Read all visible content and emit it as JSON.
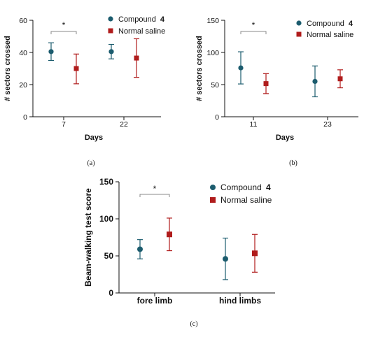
{
  "colors": {
    "compound": "#1c5c6e",
    "saline": "#b01c1c",
    "axis": "#111111",
    "bracket": "#888888"
  },
  "chart_data": [
    {
      "id": "a",
      "type": "scatter",
      "caption": "(a)",
      "xlabel": "Days",
      "ylabel": "# sectors crossed",
      "ylim": [
        0,
        60
      ],
      "yticks": [
        "0",
        "20",
        "40",
        "60"
      ],
      "categories": [
        "7",
        "22"
      ],
      "legend": {
        "placement": "top-right",
        "compound_prefix": "Compound ",
        "compound_bold": "4",
        "saline_label": "Normal saline"
      },
      "significance": "*",
      "series": [
        {
          "name": "Compound 4",
          "marker": "circle",
          "values": [
            40.5,
            40.5
          ],
          "lower": [
            35,
            36
          ],
          "upper": [
            46,
            45
          ]
        },
        {
          "name": "Normal saline",
          "marker": "square",
          "values": [
            30,
            36.5
          ],
          "lower": [
            20.5,
            24.5
          ],
          "upper": [
            39,
            48.5
          ]
        }
      ]
    },
    {
      "id": "b",
      "type": "scatter",
      "caption": "(b)",
      "xlabel": "Days",
      "ylabel": "# sectors crossed",
      "ylim": [
        0,
        150
      ],
      "yticks": [
        "0",
        "50",
        "100",
        "150"
      ],
      "categories": [
        "11",
        "23"
      ],
      "legend": {
        "placement": "top-right",
        "compound_prefix": "Compound ",
        "compound_bold": "4",
        "saline_label": "Normal saline"
      },
      "significance": "*",
      "series": [
        {
          "name": "Compound 4",
          "marker": "circle",
          "values": [
            76,
            55
          ],
          "lower": [
            51,
            31
          ],
          "upper": [
            101,
            79
          ]
        },
        {
          "name": "Normal saline",
          "marker": "square",
          "values": [
            51.5,
            59
          ],
          "lower": [
            36,
            45
          ],
          "upper": [
            67,
            73
          ]
        }
      ]
    },
    {
      "id": "c",
      "type": "scatter",
      "caption": "(c)",
      "xlabel": "",
      "ylabel": "Beam-walking test score",
      "ylim": [
        0,
        150
      ],
      "yticks": [
        "0",
        "50",
        "100",
        "150"
      ],
      "categories": [
        "fore limb",
        "hind limbs"
      ],
      "legend": {
        "placement": "top-right",
        "compound_prefix": "Compound ",
        "compound_bold": "4",
        "saline_label": "Normal saline"
      },
      "significance": "*",
      "series": [
        {
          "name": "Compound 4",
          "marker": "circle",
          "values": [
            59,
            46
          ],
          "lower": [
            46,
            18
          ],
          "upper": [
            72,
            74
          ]
        },
        {
          "name": "Normal saline",
          "marker": "square",
          "values": [
            79,
            53.5
          ],
          "lower": [
            57,
            28
          ],
          "upper": [
            101,
            79
          ]
        }
      ]
    }
  ]
}
